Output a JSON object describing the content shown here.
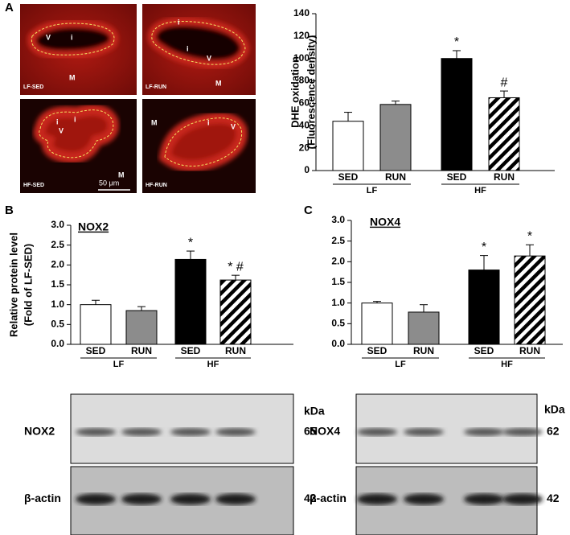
{
  "figure": {
    "panels": [
      "A",
      "B",
      "C"
    ],
    "images": [
      {
        "label": "LF-SED",
        "notes": [
          "V",
          "i",
          "M"
        ]
      },
      {
        "label": "LF-RUN",
        "notes": [
          "i",
          "i",
          "V",
          "M"
        ]
      },
      {
        "label": "HF-SED",
        "notes": [
          "i",
          "V",
          "i",
          "M"
        ]
      },
      {
        "label": "HF-RUN",
        "notes": [
          "M",
          "i",
          "V"
        ]
      }
    ],
    "scale_bar": "50 μm",
    "blots": [
      {
        "unit": "kDa",
        "rows": [
          {
            "label": "NOX2",
            "size": "65"
          },
          {
            "label": "β-actin",
            "size": "42"
          }
        ]
      },
      {
        "unit": "kDa",
        "rows": [
          {
            "label": "NOX4",
            "size": "62"
          },
          {
            "label": "β-actin",
            "size": "42"
          }
        ]
      }
    ]
  },
  "chart_data": [
    {
      "type": "bar",
      "ylabel": [
        "DHE oxidation",
        "(Fluorescence density)"
      ],
      "categories": [
        "SED",
        "RUN",
        "SED",
        "RUN"
      ],
      "groups": [
        "LF",
        "HF"
      ],
      "values": [
        44,
        59,
        100,
        65
      ],
      "errors": [
        8,
        3,
        7,
        6
      ],
      "annotations": [
        null,
        null,
        "*",
        "#"
      ],
      "colors": [
        "#ffffff",
        "#8c8c8c",
        "#000000",
        "#000000"
      ],
      "hatched": [
        false,
        false,
        false,
        true
      ],
      "ylim": [
        0,
        140
      ],
      "yticks": [
        0,
        20,
        40,
        60,
        80,
        100,
        120,
        140
      ]
    },
    {
      "type": "bar",
      "title": "NOX2",
      "ylabel": [
        "Relative protein level",
        "(Fold of LF-SED)"
      ],
      "categories": [
        "SED",
        "RUN",
        "SED",
        "RUN"
      ],
      "groups": [
        "LF",
        "HF"
      ],
      "values": [
        1.0,
        0.85,
        2.14,
        1.62
      ],
      "errors": [
        0.11,
        0.1,
        0.21,
        0.12
      ],
      "annotations": [
        null,
        null,
        "*",
        "* #"
      ],
      "colors": [
        "#ffffff",
        "#8c8c8c",
        "#000000",
        "#000000"
      ],
      "hatched": [
        false,
        false,
        false,
        true
      ],
      "ylim": [
        0,
        3
      ],
      "yticks": [
        {
          "value": 0,
          "label": "0.0"
        },
        {
          "value": 0.5,
          "label": "0.5"
        },
        {
          "value": 1,
          "label": "1.0"
        },
        {
          "value": 1.5,
          "label": "1.5"
        },
        {
          "value": 2,
          "label": "2.0"
        },
        {
          "value": 2.5,
          "label": "2.5"
        },
        {
          "value": 3,
          "label": "3.0"
        }
      ]
    },
    {
      "type": "bar",
      "title": "NOX4",
      "categories": [
        "SED",
        "RUN",
        "SED",
        "RUN"
      ],
      "groups": [
        "LF",
        "HF"
      ],
      "values": [
        1.0,
        0.78,
        1.8,
        2.14
      ],
      "errors": [
        0.04,
        0.18,
        0.35,
        0.27
      ],
      "annotations": [
        null,
        null,
        "*",
        "*"
      ],
      "colors": [
        "#ffffff",
        "#8c8c8c",
        "#000000",
        "#000000"
      ],
      "hatched": [
        false,
        false,
        false,
        true
      ],
      "ylim": [
        0,
        3
      ],
      "yticks": [
        {
          "value": 0,
          "label": "0.0"
        },
        {
          "value": 0.5,
          "label": "0.5"
        },
        {
          "value": 1,
          "label": "1.0"
        },
        {
          "value": 1.5,
          "label": "1.5"
        },
        {
          "value": 2,
          "label": "2.0"
        },
        {
          "value": 2.5,
          "label": "2.5"
        },
        {
          "value": 3,
          "label": "3.0"
        }
      ]
    }
  ]
}
